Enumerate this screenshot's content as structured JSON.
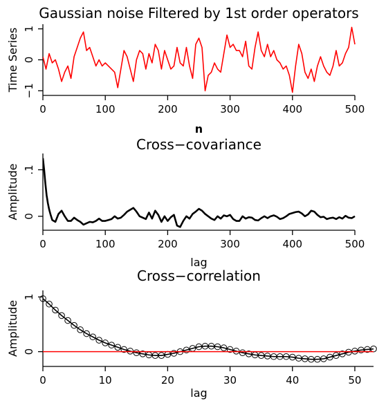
{
  "chart_data": [
    {
      "type": "line",
      "title": "Gaussian noise Filtered by 1st order operators",
      "xlabel": "n",
      "ylabel": "Time Series",
      "xlim": [
        0,
        500
      ],
      "ylim": [
        -1.15,
        1.15
      ],
      "xticks": [
        0,
        100,
        200,
        300,
        400,
        500
      ],
      "yticks": [
        -1,
        0,
        1
      ],
      "ytick_labels": [
        "−1",
        "0",
        "1"
      ],
      "grid": false,
      "series": [
        {
          "color": "#ff0000",
          "x": [
            0,
            5,
            10,
            15,
            20,
            25,
            30,
            35,
            40,
            45,
            50,
            55,
            60,
            65,
            70,
            75,
            80,
            85,
            90,
            95,
            100,
            105,
            110,
            115,
            120,
            125,
            130,
            135,
            140,
            145,
            150,
            155,
            160,
            165,
            170,
            175,
            180,
            185,
            190,
            195,
            200,
            205,
            210,
            215,
            220,
            225,
            230,
            235,
            240,
            245,
            250,
            255,
            260,
            265,
            270,
            275,
            280,
            285,
            290,
            295,
            300,
            305,
            310,
            315,
            320,
            325,
            330,
            335,
            340,
            345,
            350,
            355,
            360,
            365,
            370,
            375,
            380,
            385,
            390,
            395,
            400,
            405,
            410,
            415,
            420,
            425,
            430,
            435,
            440,
            445,
            450,
            455,
            460,
            465,
            470,
            475,
            480,
            485,
            490,
            495,
            500
          ],
          "y": [
            0.1,
            -0.3,
            0.2,
            -0.1,
            0.0,
            -0.3,
            -0.7,
            -0.4,
            -0.2,
            -0.6,
            0.1,
            0.4,
            0.7,
            0.9,
            0.3,
            0.4,
            0.1,
            -0.2,
            0.0,
            -0.2,
            -0.1,
            -0.2,
            -0.3,
            -0.4,
            -0.9,
            -0.3,
            0.3,
            0.1,
            -0.3,
            -0.7,
            0.0,
            0.3,
            0.2,
            -0.3,
            0.2,
            -0.1,
            0.5,
            0.3,
            -0.3,
            0.3,
            0.0,
            -0.3,
            -0.2,
            0.4,
            -0.1,
            -0.2,
            0.4,
            -0.2,
            -0.6,
            0.5,
            0.7,
            0.4,
            -1.0,
            -0.5,
            -0.4,
            -0.1,
            -0.3,
            -0.4,
            0.2,
            0.8,
            0.4,
            0.5,
            0.3,
            0.3,
            0.1,
            0.6,
            -0.2,
            -0.3,
            0.4,
            0.9,
            0.3,
            0.1,
            0.5,
            0.1,
            0.3,
            0.0,
            -0.1,
            -0.3,
            -0.2,
            -0.5,
            -1.05,
            -0.2,
            0.5,
            0.2,
            -0.4,
            -0.6,
            -0.3,
            -0.7,
            -0.2,
            0.1,
            -0.2,
            -0.4,
            -0.5,
            -0.2,
            0.3,
            -0.2,
            -0.1,
            0.2,
            0.4,
            1.05,
            0.5
          ]
        }
      ]
    },
    {
      "type": "line",
      "title": "Cross−covariance",
      "xlabel": "lag",
      "ylabel": "Amplitude",
      "xlim": [
        0,
        500
      ],
      "ylim": [
        -0.03,
        0.135
      ],
      "xticks": [
        0,
        100,
        200,
        300,
        400,
        500
      ],
      "yticks": [
        0,
        0.1
      ],
      "ytick_labels": [
        "0",
        ".1"
      ],
      "grid": false,
      "series": [
        {
          "color": "#000000",
          "x": [
            0,
            2,
            4,
            6,
            8,
            10,
            12,
            15,
            20,
            25,
            30,
            35,
            40,
            45,
            50,
            55,
            60,
            65,
            70,
            75,
            80,
            85,
            90,
            95,
            100,
            105,
            110,
            115,
            120,
            125,
            130,
            135,
            140,
            145,
            150,
            155,
            160,
            165,
            170,
            175,
            180,
            185,
            190,
            195,
            200,
            205,
            210,
            215,
            220,
            225,
            230,
            235,
            240,
            245,
            250,
            255,
            260,
            265,
            270,
            275,
            280,
            285,
            290,
            295,
            300,
            305,
            310,
            315,
            320,
            325,
            330,
            335,
            340,
            345,
            350,
            355,
            360,
            365,
            370,
            375,
            380,
            385,
            390,
            395,
            400,
            405,
            410,
            415,
            420,
            425,
            430,
            435,
            440,
            445,
            450,
            455,
            460,
            465,
            470,
            475,
            480,
            485,
            490,
            495,
            500
          ],
          "y": [
            0.125,
            0.1,
            0.07,
            0.045,
            0.028,
            0.015,
            0.005,
            -0.008,
            -0.012,
            0.005,
            0.012,
            0.0,
            -0.01,
            -0.01,
            -0.003,
            -0.008,
            -0.012,
            -0.018,
            -0.015,
            -0.012,
            -0.013,
            -0.01,
            -0.005,
            -0.01,
            -0.01,
            -0.008,
            -0.006,
            0.0,
            -0.005,
            -0.003,
            0.003,
            0.01,
            0.014,
            0.018,
            0.01,
            0.0,
            -0.003,
            -0.006,
            0.008,
            -0.005,
            0.012,
            0.003,
            -0.012,
            0.0,
            -0.01,
            -0.002,
            0.003,
            -0.02,
            -0.023,
            -0.01,
            0.0,
            -0.005,
            0.005,
            0.01,
            0.016,
            0.012,
            0.005,
            0.0,
            -0.005,
            -0.008,
            0.0,
            -0.005,
            0.002,
            0.0,
            0.003,
            -0.006,
            -0.01,
            -0.01,
            0.0,
            -0.005,
            -0.002,
            -0.003,
            -0.008,
            -0.009,
            -0.004,
            0.0,
            -0.004,
            0.0,
            0.002,
            -0.001,
            -0.006,
            -0.004,
            0.0,
            0.005,
            0.007,
            0.009,
            0.01,
            0.006,
            0.0,
            0.004,
            0.012,
            0.01,
            0.003,
            -0.002,
            -0.001,
            -0.006,
            -0.004,
            -0.003,
            -0.006,
            -0.002,
            -0.005,
            0.001,
            -0.003,
            -0.004,
            0.0
          ]
        }
      ]
    },
    {
      "type": "line",
      "title": "Cross−correlation",
      "xlabel": "lag",
      "ylabel": "Amplitude",
      "xlim": [
        0,
        53
      ],
      "ylim": [
        -0.27,
        1.12
      ],
      "xticks": [
        0,
        10,
        20,
        30,
        40,
        50
      ],
      "yticks": [
        0,
        1
      ],
      "ytick_labels": [
        "0",
        "1"
      ],
      "grid": false,
      "markers": "open-circle",
      "series": [
        {
          "color": "#000000",
          "x": [
            0,
            1,
            2,
            3,
            4,
            5,
            6,
            7,
            8,
            9,
            10,
            11,
            12,
            13,
            14,
            15,
            16,
            17,
            18,
            19,
            20,
            21,
            22,
            23,
            24,
            25,
            26,
            27,
            28,
            29,
            30,
            31,
            32,
            33,
            34,
            35,
            36,
            37,
            38,
            39,
            40,
            41,
            42,
            43,
            44,
            45,
            46,
            47,
            48,
            49,
            50,
            51,
            52,
            53
          ],
          "y": [
            0.97,
            0.87,
            0.76,
            0.66,
            0.57,
            0.48,
            0.4,
            0.33,
            0.27,
            0.21,
            0.16,
            0.12,
            0.08,
            0.04,
            0.01,
            -0.02,
            -0.04,
            -0.06,
            -0.07,
            -0.07,
            -0.05,
            -0.03,
            0.0,
            0.03,
            0.06,
            0.09,
            0.1,
            0.1,
            0.09,
            0.07,
            0.04,
            0.01,
            -0.02,
            -0.04,
            -0.06,
            -0.07,
            -0.08,
            -0.09,
            -0.09,
            -0.09,
            -0.1,
            -0.12,
            -0.13,
            -0.14,
            -0.14,
            -0.13,
            -0.1,
            -0.07,
            -0.04,
            -0.01,
            0.01,
            0.03,
            0.04,
            0.05
          ]
        },
        {
          "color": "#ff0000",
          "x": [
            0,
            53
          ],
          "y": [
            0,
            0
          ]
        }
      ]
    }
  ]
}
